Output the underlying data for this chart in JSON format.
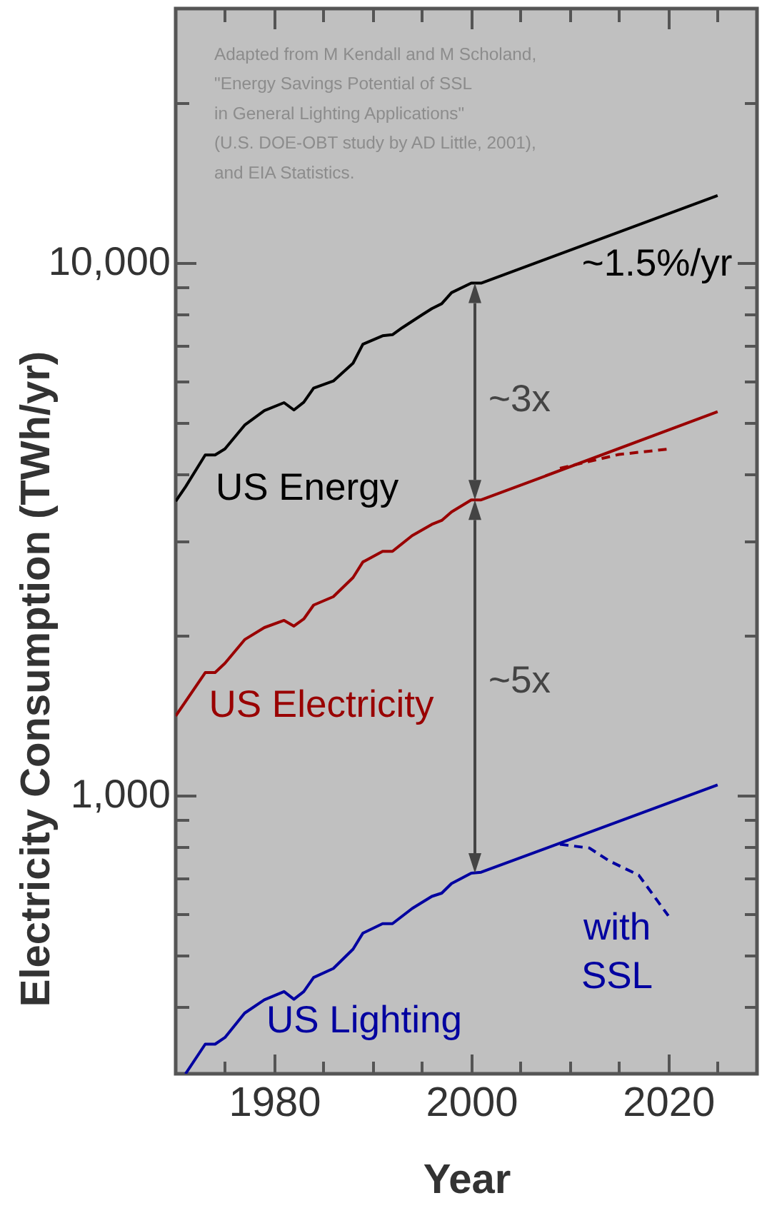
{
  "chart_data": {
    "type": "line",
    "xlabel": "Year",
    "ylabel": "Electricity Consumption (TWh/yr)",
    "log": "y",
    "xlim": [
      1970,
      2029
    ],
    "ylim": [
      300,
      30000
    ],
    "xticks": [
      {
        "value": 1975,
        "label": null
      },
      1980,
      {
        "value": 1985,
        "label": null
      },
      {
        "value": 1990,
        "label": null
      },
      {
        "value": 1995,
        "label": null
      },
      2000,
      {
        "value": 2005,
        "label": null
      },
      {
        "value": 2010,
        "label": null
      },
      {
        "value": 2015,
        "label": null
      },
      2020,
      {
        "value": 2025,
        "label": null
      }
    ],
    "yticks": [
      {
        "value": 400,
        "label": null
      },
      {
        "value": 500,
        "label": null
      },
      {
        "value": 600,
        "label": null
      },
      {
        "value": 700,
        "label": null
      },
      {
        "value": 800,
        "label": null
      },
      {
        "value": 900,
        "label": null
      },
      {
        "value": 1000,
        "label": "1,000"
      },
      {
        "value": 2000,
        "label": null
      },
      {
        "value": 3000,
        "label": null
      },
      {
        "value": 4000,
        "label": null
      },
      {
        "value": 5000,
        "label": null
      },
      {
        "value": 6000,
        "label": null
      },
      {
        "value": 7000,
        "label": null
      },
      {
        "value": 8000,
        "label": null
      },
      {
        "value": 9000,
        "label": null
      },
      {
        "value": 10000,
        "label": "10,000"
      },
      {
        "value": 20000,
        "label": null
      }
    ],
    "series": [
      {
        "name": "US Energy",
        "color": "#000000",
        "line_style": "solid",
        "x": [
          1970,
          1971,
          1973,
          1974,
          1975,
          1977,
          1979,
          1981,
          1982,
          1983,
          1984,
          1986,
          1988,
          1989,
          1991,
          1992,
          1993,
          1995,
          1996,
          1997,
          1998,
          2000,
          2001,
          2025
        ],
        "values": [
          3565,
          3795,
          4355,
          4355,
          4470,
          4955,
          5275,
          5460,
          5290,
          5470,
          5815,
          5995,
          6475,
          7030,
          7290,
          7325,
          7550,
          7980,
          8200,
          8375,
          8785,
          9155,
          9155,
          13370
        ]
      },
      {
        "name": "US Electricity",
        "color": "#990000",
        "line_style": "solid",
        "x": [
          1970,
          1973,
          1974,
          1975,
          1977,
          1979,
          1981,
          1982,
          1983,
          1984,
          1986,
          1988,
          1989,
          1991,
          1992,
          1994,
          1996,
          1997,
          1998,
          2000,
          2001,
          2025
        ],
        "values": [
          1409,
          1700,
          1700,
          1770,
          1960,
          2065,
          2130,
          2078,
          2143,
          2276,
          2360,
          2563,
          2742,
          2871,
          2871,
          3073,
          3226,
          3282,
          3405,
          3586,
          3586,
          5250
        ]
      },
      {
        "name": "US Lighting",
        "color": "#0000a0",
        "line_style": "solid",
        "x": [
          1971,
          1973,
          1974,
          1975,
          1977,
          1979,
          1981,
          1982,
          1983,
          1984,
          1986,
          1988,
          1989,
          1991,
          1992,
          1994,
          1996,
          1997,
          1998,
          2000,
          2001,
          2025
        ],
        "values": [
          300,
          341,
          341,
          351,
          390,
          413,
          428,
          414,
          428,
          455,
          473,
          514,
          551,
          574,
          574,
          613,
          646,
          655,
          683,
          714,
          717,
          1046
        ]
      },
      {
        "color": "#990000",
        "line_style": "dashed",
        "x": [
          2009,
          2015,
          2020
        ],
        "values": [
          4110,
          4365,
          4467
        ]
      },
      {
        "name": "with SSL",
        "color": "#0000a0",
        "line_style": "dashed",
        "x": [
          2009,
          2012,
          2014,
          2017,
          2020
        ],
        "values": [
          809,
          796,
          753,
          708,
          594
        ]
      }
    ],
    "annotations": [
      "Adapted from M Kendall and M Scholand,\n\"Energy Savings Potential of SSL\nin General Lighting Applications\"\n(U.S. DOE-OBT study by AD Little, 2001),\nand EIA Statistics.",
      "~1.5%/yr",
      "~3x",
      "~5x"
    ]
  }
}
